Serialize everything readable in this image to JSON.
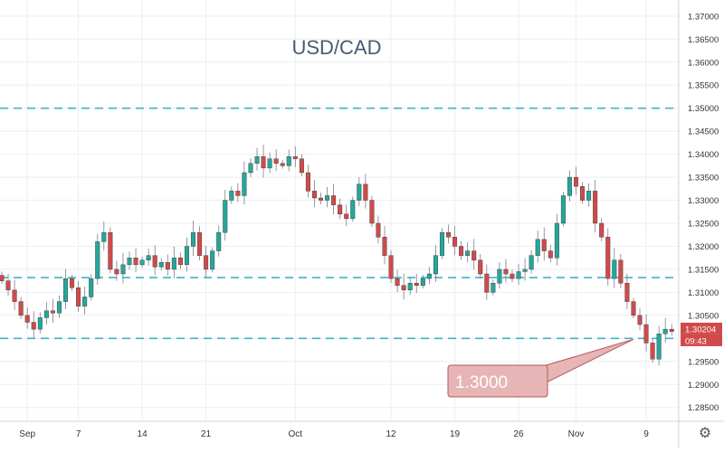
{
  "chart_data": {
    "type": "candlestick",
    "title": "USD/CAD",
    "ylim": [
      1.282,
      1.3735
    ],
    "y_ticks": [
      "1.28500",
      "1.29000",
      "1.29500",
      "1.30000",
      "1.30500",
      "1.31000",
      "1.31500",
      "1.32000",
      "1.32500",
      "1.33000",
      "1.33500",
      "1.34000",
      "1.34500",
      "1.35000",
      "1.35500",
      "1.36000",
      "1.36500",
      "1.37000"
    ],
    "x_ticks": [
      {
        "label": "Sep",
        "i": 4
      },
      {
        "label": "7",
        "i": 12
      },
      {
        "label": "14",
        "i": 22
      },
      {
        "label": "21",
        "i": 32
      },
      {
        "label": "Oct",
        "i": 46
      },
      {
        "label": "12",
        "i": 61
      },
      {
        "label": "19",
        "i": 71
      },
      {
        "label": "26",
        "i": 81
      },
      {
        "label": "Nov",
        "i": 90
      },
      {
        "label": "9",
        "i": 101
      }
    ],
    "bars_count": 106,
    "levels": [
      {
        "value": 1.35
      },
      {
        "value": 1.3132
      },
      {
        "value": 1.3
      }
    ],
    "annotation": {
      "text": "1.3000",
      "level": 1.3
    },
    "current_price": "1.30204",
    "countdown": "09:43",
    "price_values": [
      1.3125,
      1.3105,
      1.308,
      1.305,
      1.3035,
      1.302,
      1.3045,
      1.306,
      1.3055,
      1.308,
      1.313,
      1.311,
      1.307,
      1.309,
      1.313,
      1.321,
      1.323,
      1.315,
      1.314,
      1.316,
      1.3175,
      1.316,
      1.317,
      1.318,
      1.3155,
      1.3165,
      1.315,
      1.3175,
      1.316,
      1.32,
      1.323,
      1.318,
      1.315,
      1.319,
      1.323,
      1.33,
      1.332,
      1.331,
      1.336,
      1.338,
      1.3395,
      1.337,
      1.339,
      1.338,
      1.3375,
      1.3395,
      1.339,
      1.336,
      1.332,
      1.3305,
      1.33,
      1.331,
      1.329,
      1.327,
      1.326,
      1.33,
      1.3335,
      1.33,
      1.325,
      1.322,
      1.318,
      1.313,
      1.3115,
      1.3105,
      1.312,
      1.3115,
      1.313,
      1.314,
      1.318,
      1.323,
      1.322,
      1.32,
      1.318,
      1.319,
      1.317,
      1.314,
      1.31,
      1.312,
      1.315,
      1.314,
      1.313,
      1.3145,
      1.315,
      1.318,
      1.3215,
      1.319,
      1.3175,
      1.325,
      1.331,
      1.335,
      1.333,
      1.33,
      1.332,
      1.325,
      1.322,
      1.313,
      1.317,
      1.312,
      1.308,
      1.305,
      1.303,
      1.299,
      1.2955,
      1.301,
      1.302,
      1.3015
    ]
  }
}
